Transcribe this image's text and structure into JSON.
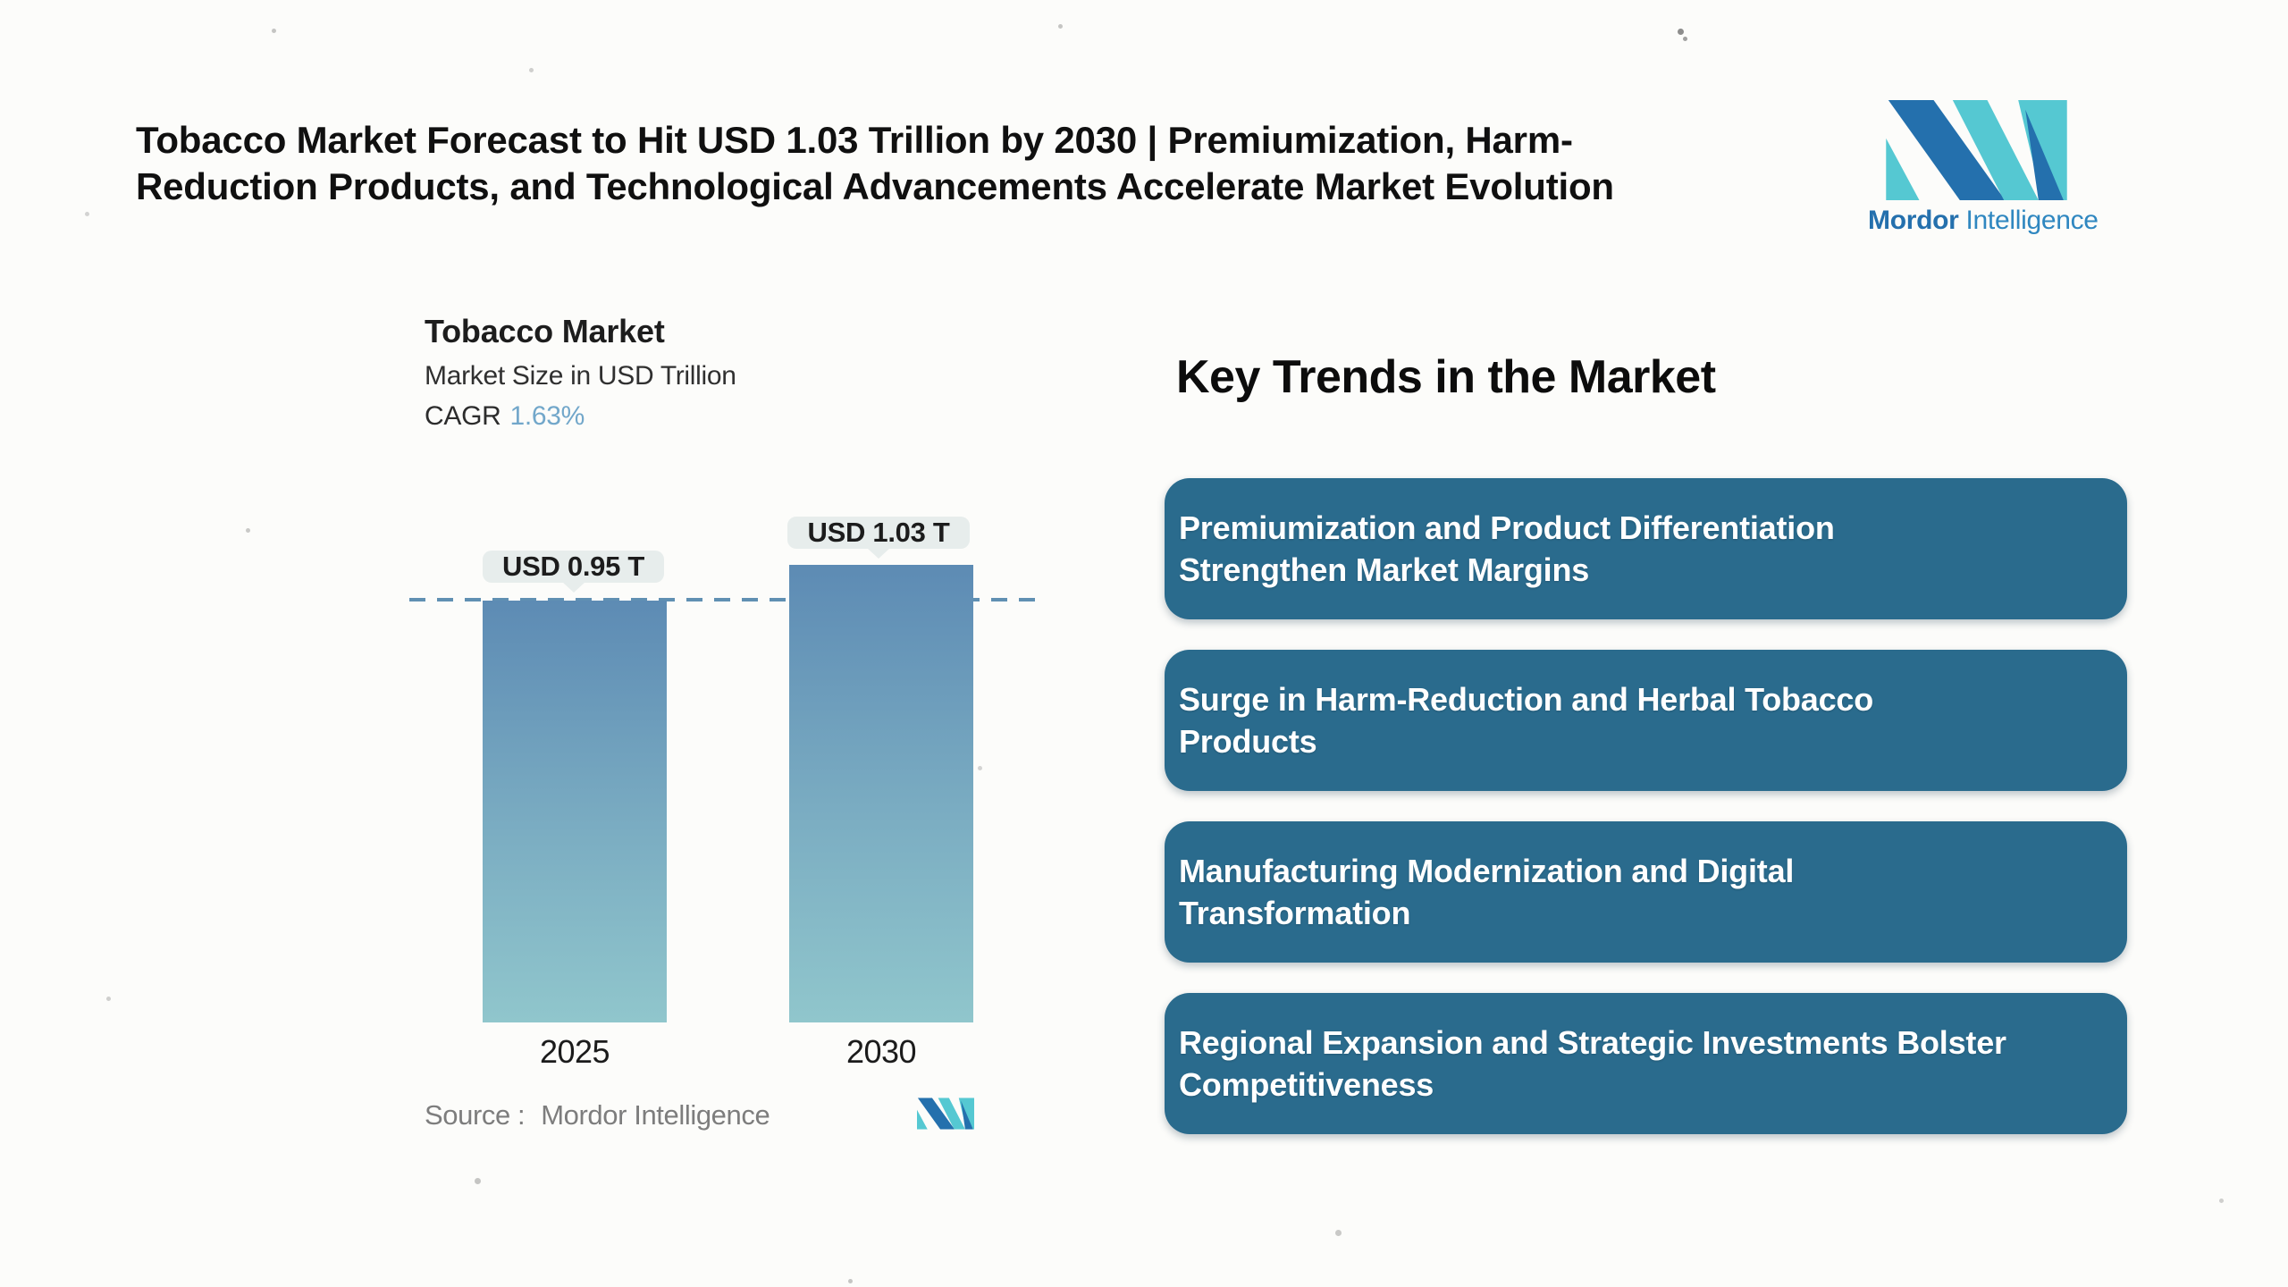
{
  "page": {
    "background_color": "#fcfcfa"
  },
  "header": {
    "title_line1": "Tobacco Market Forecast to Hit USD 1.03 Trillion by 2030 | Premiumization, Harm-",
    "title_line2": "Reduction Products, and Technological Advancements Accelerate Market Evolution"
  },
  "brand": {
    "name_bold": "Mordor",
    "name_light": "Intelligence"
  },
  "chart_data": {
    "type": "bar",
    "title": "Tobacco Market",
    "subtitle": "Market Size in USD Trillion",
    "cagr_label": "CAGR",
    "cagr_value": "1.63%",
    "categories": [
      "2025",
      "2030"
    ],
    "values": [
      0.95,
      1.03
    ],
    "data_labels": [
      "USD 0.95 T",
      "USD 1.03 T"
    ],
    "unit": "USD Trillion",
    "ylim": [
      0,
      1.1
    ],
    "reference_line_value": 0.95,
    "grid": false,
    "legend": false,
    "source_label": "Source :",
    "source_value": "Mordor Intelligence"
  },
  "trends": {
    "heading": "Key Trends in the Market",
    "items": [
      {
        "line1": "Premiumization and Product Differentiation",
        "line2": "Strengthen Market Margins"
      },
      {
        "line1": "Surge in Harm-Reduction and Herbal Tobacco",
        "line2": "Products"
      },
      {
        "line1": "Manufacturing Modernization and Digital",
        "line2": "Transformation"
      },
      {
        "line1": "Regional Expansion and Strategic Investments Bolster",
        "line2": "Competitiveness"
      }
    ]
  },
  "colors": {
    "logo_dark_blue": "#2470ad",
    "logo_teal": "#55c8d2",
    "trend_box": "#2a6b8d",
    "bar_gradient_top": "#5d8bb4",
    "bar_gradient_bottom": "#90c6cc",
    "dashed_line": "#6090b2",
    "bubble_background": "#e7edec",
    "cagr_accent": "#72a7ca",
    "source_text": "#7d7d7d"
  }
}
